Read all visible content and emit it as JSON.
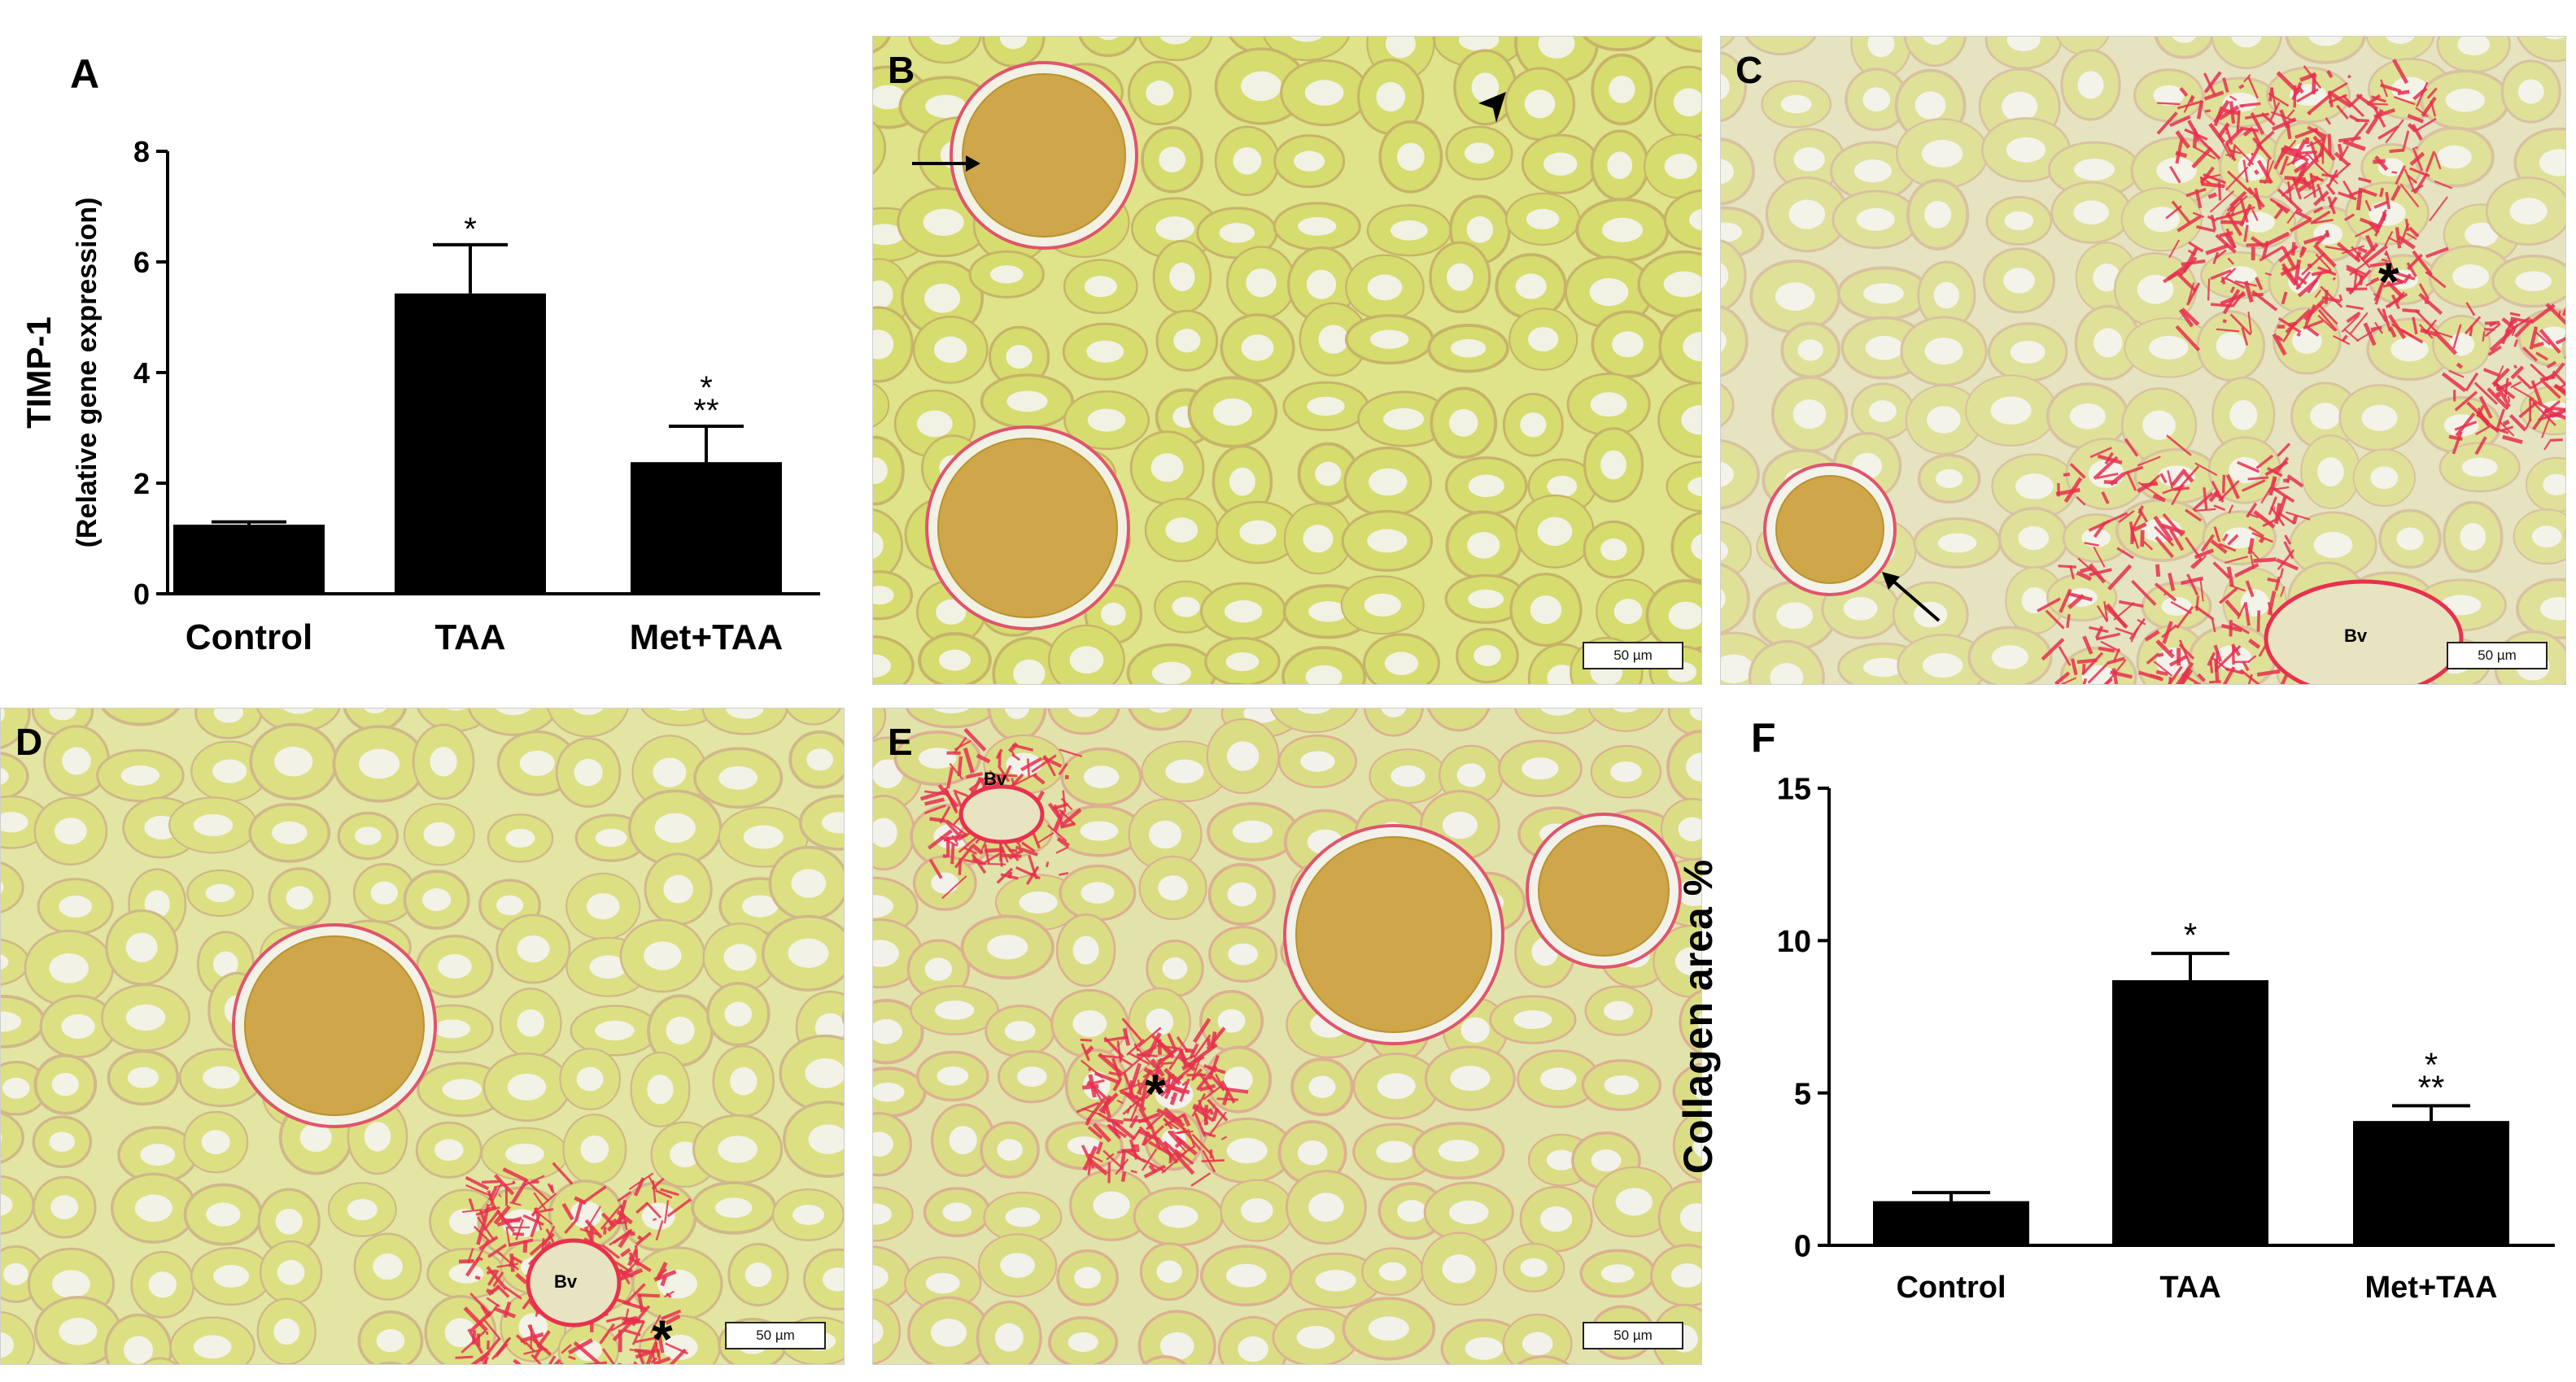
{
  "panels": {
    "A": {
      "label": "A"
    },
    "B": {
      "label": "B",
      "scale": "50 µm"
    },
    "C": {
      "label": "C",
      "scale": "50 µm",
      "bv": "Bv",
      "star": "*"
    },
    "D": {
      "label": "D",
      "scale": "50 µm",
      "bv": "Bv",
      "star": "*"
    },
    "E": {
      "label": "E",
      "scale": "50 µm",
      "bv": "Bv",
      "star": "*"
    },
    "F": {
      "label": "F"
    }
  },
  "chart_data": [
    {
      "panel": "A",
      "type": "bar",
      "categories": [
        "Control",
        "TAA",
        "Met+TAA"
      ],
      "values": [
        1.25,
        5.43,
        2.38
      ],
      "errors": [
        0.05,
        0.88,
        0.65
      ],
      "annotations": [
        [],
        [
          "*"
        ],
        [
          "*",
          "**"
        ]
      ],
      "ylabel_line1": "TIMP-1",
      "ylabel_line2": "(Relative gene expression)",
      "ylim": [
        0,
        8
      ],
      "yticks": [
        0,
        2,
        4,
        6,
        8
      ],
      "grid": false,
      "bar_color": "#000000"
    },
    {
      "panel": "F",
      "type": "bar",
      "categories": [
        "Control",
        "TAA",
        "Met+TAA"
      ],
      "values": [
        1.45,
        8.7,
        4.08
      ],
      "errors": [
        0.28,
        0.88,
        0.5
      ],
      "annotations": [
        [],
        [
          "*"
        ],
        [
          "*",
          "**"
        ]
      ],
      "ylabel_line1": "Collagen area %",
      "ylabel_line2": "",
      "ylim": [
        0,
        15
      ],
      "yticks": [
        0,
        5,
        10,
        15
      ],
      "grid": false,
      "bar_color": "#000000"
    }
  ]
}
